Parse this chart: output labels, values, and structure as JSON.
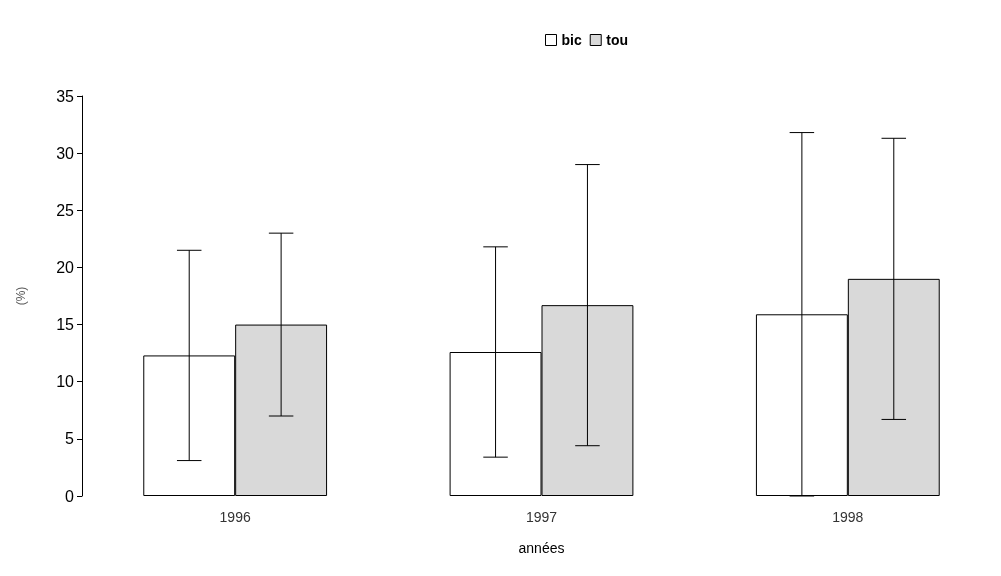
{
  "chart_data": {
    "type": "bar",
    "xlabel": "années",
    "ylabel": "(%)",
    "categories": [
      "1996",
      "1997",
      "1998"
    ],
    "series": [
      {
        "name": "bic",
        "color": "#ffffff",
        "values": [
          12.3,
          12.6,
          15.9
        ],
        "errors": [
          9.2,
          9.2,
          15.9
        ]
      },
      {
        "name": "tou",
        "color": "#d9d9d9",
        "values": [
          15,
          16.7,
          19
        ],
        "errors": [
          8,
          12.3,
          12.3
        ]
      }
    ],
    "ylim": [
      0,
      35
    ],
    "yticks": [
      0,
      5,
      10,
      15,
      20,
      25,
      30,
      35
    ],
    "grid": false,
    "legend": "top"
  }
}
